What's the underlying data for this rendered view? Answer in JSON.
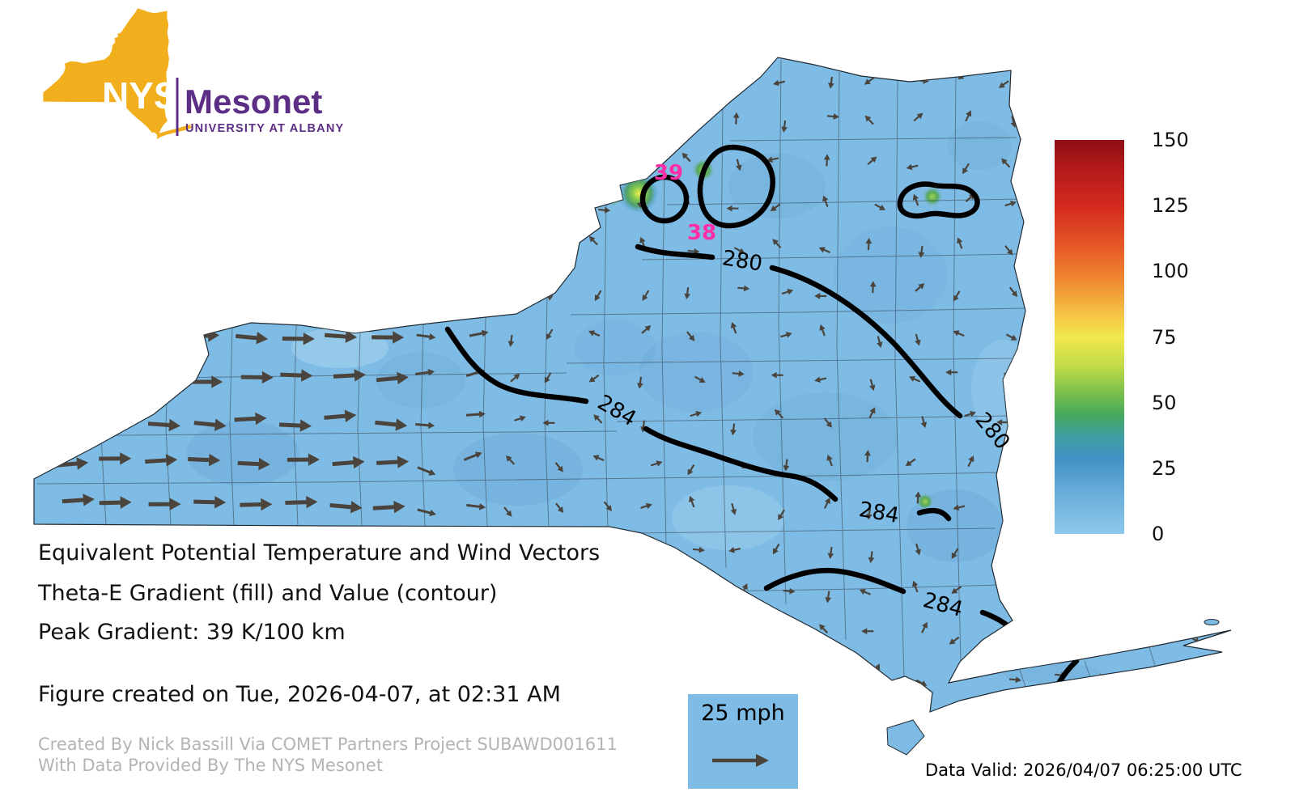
{
  "logo": {
    "nys": "NYS",
    "mesonet": "Mesonet",
    "university": "UNIVERSITY AT ALBANY",
    "yellow": "#F2AF1D",
    "purple": "#5C2E85"
  },
  "titles": {
    "line1": "Equivalent Potential Temperature and Wind Vectors",
    "line2": "Theta-E Gradient (fill) and Value (contour)",
    "line3": "Peak Gradient: 39 K/100 km",
    "created": "Figure created on Tue, 2026-04-07, at 02:31 AM"
  },
  "credits": {
    "line1": "Created By Nick Bassill Via COMET Partners Project SUBAWD001611",
    "line2": "With Data Provided By The NYS Mesonet"
  },
  "footer": {
    "data_valid": "Data Valid: 2026/04/07 06:25:00 UTC"
  },
  "wind_legend": {
    "label": "25 mph"
  },
  "colorbar": {
    "ticks": [
      "150",
      "125",
      "100",
      "75",
      "50",
      "25",
      "0"
    ]
  },
  "map": {
    "fill_color": "#7fbce5",
    "contour_labels": [
      {
        "text": "280"
      },
      {
        "text": "280"
      },
      {
        "text": "284"
      },
      {
        "text": "284"
      },
      {
        "text": "284"
      }
    ],
    "peak_labels": [
      {
        "text": "39"
      },
      {
        "text": "38"
      }
    ],
    "peak_label_color": "#ff2ea6"
  },
  "chart_data": {
    "type": "heatmap",
    "title": "Equivalent Potential Temperature and Wind Vectors",
    "subtitle": "Theta-E Gradient (fill) and Value (contour)",
    "region": "New York State",
    "fill_variable": "Theta-E Gradient (K/100 km)",
    "fill_range": [
      0,
      150
    ],
    "colorbar_ticks": [
      150,
      125,
      100,
      75,
      50,
      25,
      0
    ],
    "colorbar_colors_top_to_bottom": [
      "#8c0e13",
      "#d32b1e",
      "#f08b33",
      "#f2e84c",
      "#7cc04c",
      "#4292c6",
      "#8ec9ec"
    ],
    "dominant_fill_value_estimate": "0-10 (light blue) over nearly all of the state, small green maxima near the Lake Ontario northeast shore",
    "contour_variable": "Theta-E value (K)",
    "contour_levels_labeled": [
      280,
      284
    ],
    "contour_label_instances": [
      "280 (north-central)",
      "280 (east edge)",
      "284 (central)",
      "284 (east-central)",
      "284 (southeast)"
    ],
    "closed_contours": [
      "two closed 280-level loops near the Lake Ontario northeast shore",
      "one closed loop in the northeast interior"
    ],
    "peak_gradient": {
      "value_k_per_100km": 39,
      "label": "39",
      "secondary_label": "38"
    },
    "wind": {
      "reference_speed_mph": 25,
      "pattern": "strong westerly (eastward) vectors over western NY, weak variable-direction vectors elsewhere"
    },
    "figure_created": "Tue, 2026-04-07, at 02:31 AM",
    "data_valid_utc": "2026/04/07 06:25:00"
  }
}
